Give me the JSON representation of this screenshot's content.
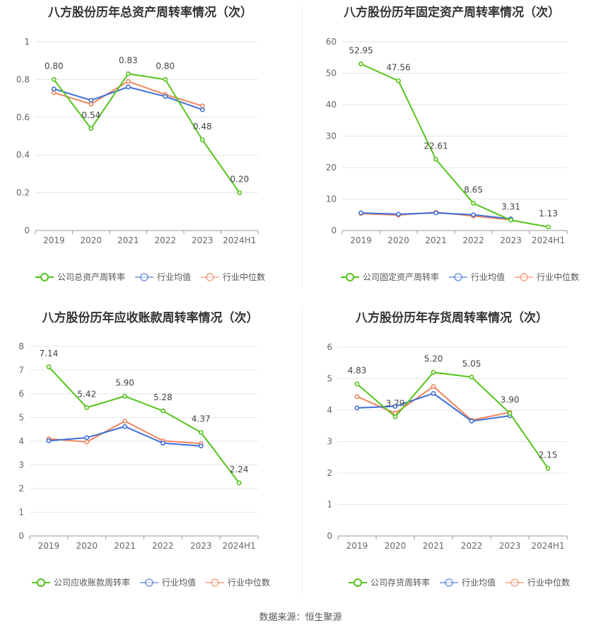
{
  "colors": {
    "company": "#52c41a",
    "industry_avg": "#3f6fd8",
    "industry_median": "#f0845c"
  },
  "source": "数据来源：恒生聚源",
  "chart_data": [
    {
      "type": "line",
      "title": "八方股份历年总资产周转率情况（次）",
      "categories": [
        "2019",
        "2020",
        "2021",
        "2022",
        "2023",
        "2024H1"
      ],
      "ylim": [
        0,
        1
      ],
      "yticks": [
        "0",
        "0.2",
        "0.4",
        "0.6",
        "0.8",
        "1"
      ],
      "ytick_values": [
        0,
        0.2,
        0.4,
        0.6,
        0.8,
        1
      ],
      "series": [
        {
          "name": "公司总资产周转率",
          "values": [
            0.8,
            0.54,
            0.83,
            0.8,
            0.48,
            0.2
          ],
          "labels": [
            "0.80",
            "0.54",
            "0.83",
            "0.80",
            "0.48",
            "0.20"
          ]
        },
        {
          "name": "行业均值",
          "values": [
            0.75,
            0.69,
            0.76,
            0.71,
            0.64,
            null
          ]
        },
        {
          "name": "行业中位数",
          "values": [
            0.73,
            0.67,
            0.79,
            0.72,
            0.66,
            null
          ]
        }
      ]
    },
    {
      "type": "line",
      "title": "八方股份历年固定资产周转率情况（次）",
      "categories": [
        "2019",
        "2020",
        "2021",
        "2022",
        "2023",
        "2024H1"
      ],
      "ylim": [
        0,
        60
      ],
      "yticks": [
        "0",
        "10",
        "20",
        "30",
        "40",
        "50",
        "60"
      ],
      "ytick_values": [
        0,
        10,
        20,
        30,
        40,
        50,
        60
      ],
      "series": [
        {
          "name": "公司固定资产周转率",
          "values": [
            52.95,
            47.56,
            22.61,
            8.65,
            3.31,
            1.13
          ],
          "labels": [
            "52.95",
            "47.56",
            "22.61",
            "8.65",
            "3.31",
            "1.13"
          ]
        },
        {
          "name": "行业均值",
          "values": [
            5.6,
            5.2,
            5.6,
            5.0,
            3.7,
            null
          ]
        },
        {
          "name": "行业中位数",
          "values": [
            5.4,
            4.9,
            5.8,
            4.6,
            3.4,
            null
          ]
        }
      ]
    },
    {
      "type": "line",
      "title": "八方股份历年应收账款周转率情况（次）",
      "categories": [
        "2019",
        "2020",
        "2021",
        "2022",
        "2023",
        "2024H1"
      ],
      "ylim": [
        0,
        8
      ],
      "yticks": [
        "0",
        "1",
        "2",
        "3",
        "4",
        "5",
        "6",
        "7",
        "8"
      ],
      "ytick_values": [
        0,
        1,
        2,
        3,
        4,
        5,
        6,
        7,
        8
      ],
      "series": [
        {
          "name": "公司应收账款周转率",
          "values": [
            7.14,
            5.42,
            5.9,
            5.28,
            4.37,
            2.24
          ],
          "labels": [
            "7.14",
            "5.42",
            "5.90",
            "5.28",
            "4.37",
            "2.24"
          ]
        },
        {
          "name": "行业均值",
          "values": [
            4.02,
            4.15,
            4.62,
            3.92,
            3.8,
            null
          ]
        },
        {
          "name": "行业中位数",
          "values": [
            4.1,
            3.97,
            4.85,
            4.02,
            3.9,
            null
          ]
        }
      ]
    },
    {
      "type": "line",
      "title": "八方股份历年存货周转率情况（次）",
      "categories": [
        "2019",
        "2020",
        "2021",
        "2022",
        "2023",
        "2024H1"
      ],
      "ylim": [
        0,
        6
      ],
      "yticks": [
        "0",
        "1",
        "2",
        "3",
        "4",
        "5",
        "6"
      ],
      "ytick_values": [
        0,
        1,
        2,
        3,
        4,
        5,
        6
      ],
      "series": [
        {
          "name": "公司存货周转率",
          "values": [
            4.83,
            3.79,
            5.2,
            5.05,
            3.9,
            2.15
          ],
          "labels": [
            "4.83",
            "3.79",
            "5.20",
            "5.05",
            "3.90",
            "2.15"
          ]
        },
        {
          "name": "行业均值",
          "values": [
            4.07,
            4.12,
            4.53,
            3.65,
            3.82,
            null
          ]
        },
        {
          "name": "行业中位数",
          "values": [
            4.43,
            3.9,
            4.75,
            3.68,
            3.93,
            null
          ]
        }
      ]
    }
  ]
}
